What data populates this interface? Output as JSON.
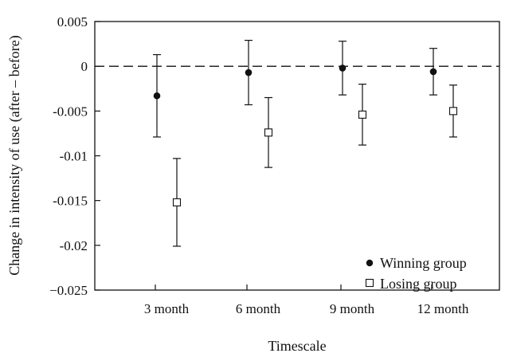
{
  "chart_data": {
    "type": "scatter",
    "title": "",
    "xlabel": "Timescale",
    "ylabel": "Change in intensity of use (after – before)",
    "categories": [
      "3 month",
      "6 month",
      "9 month",
      "12 month"
    ],
    "ylim": [
      -0.025,
      0.005
    ],
    "yticks": [
      0.005,
      0,
      -0.005,
      -0.01,
      -0.015,
      -0.02,
      -0.025
    ],
    "ytick_labels": [
      "0.005",
      "0",
      "-0.005",
      "-0.01",
      "-0.015",
      "-0.02",
      "−0.025"
    ],
    "reference_line": {
      "y": 0,
      "style": "dashed"
    },
    "grid": false,
    "legend_position": "bottom-right",
    "series": [
      {
        "name": "Winning group",
        "marker": "filled-circle",
        "color": "#111111",
        "values": [
          -0.0033,
          -0.0007,
          -0.0002,
          -0.0006
        ],
        "err_low": [
          -0.0079,
          -0.0043,
          -0.0032,
          -0.0032
        ],
        "err_high": [
          0.0013,
          0.0029,
          0.0028,
          0.002
        ]
      },
      {
        "name": "Losing group",
        "marker": "open-square",
        "color": "#111111",
        "values": [
          -0.0152,
          -0.0074,
          -0.0054,
          -0.005
        ],
        "err_low": [
          -0.0201,
          -0.0113,
          -0.0088,
          -0.0079
        ],
        "err_high": [
          -0.0103,
          -0.0035,
          -0.002,
          -0.0021
        ]
      }
    ]
  }
}
